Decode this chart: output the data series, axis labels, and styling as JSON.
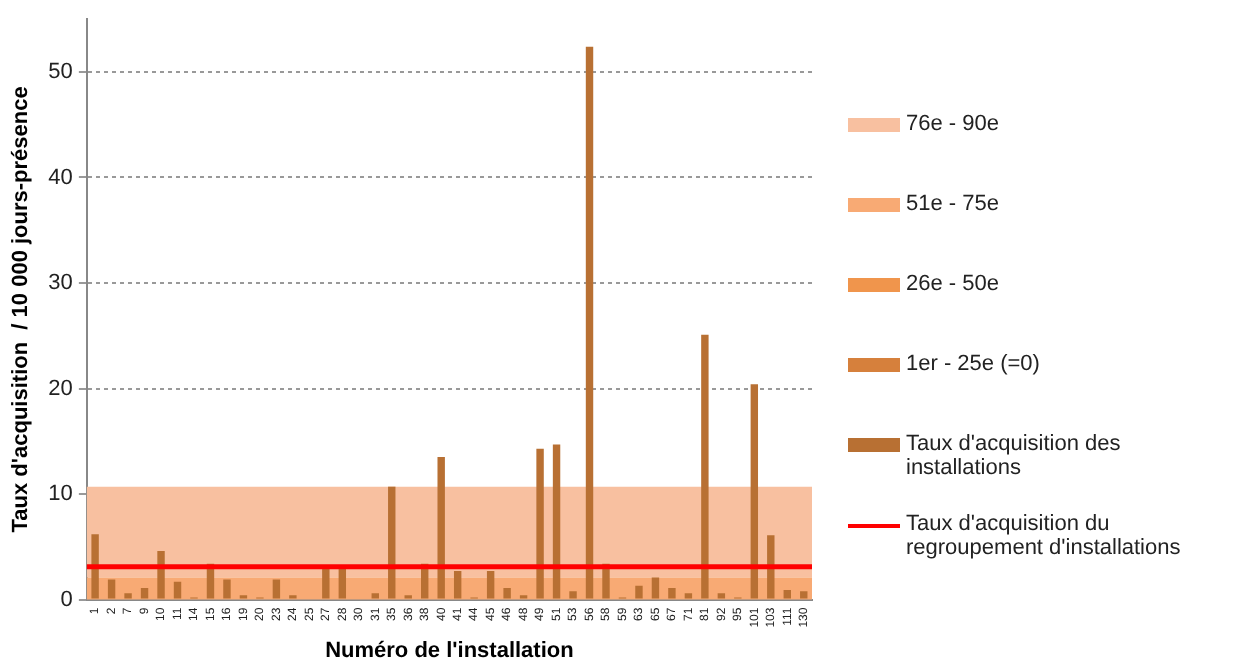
{
  "chart_data": {
    "type": "bar",
    "xlabel": "Numéro de l'installation",
    "ylabel": "Taux d'acquisition  / 10 000 jours-présence",
    "categories": [
      "1",
      "2",
      "7",
      "9",
      "10",
      "11",
      "14",
      "15",
      "16",
      "19",
      "20",
      "23",
      "24",
      "25",
      "27",
      "28",
      "30",
      "31",
      "35",
      "36",
      "38",
      "40",
      "41",
      "44",
      "45",
      "46",
      "48",
      "49",
      "51",
      "53",
      "56",
      "58",
      "59",
      "63",
      "65",
      "67",
      "71",
      "81",
      "92",
      "95",
      "101",
      "103",
      "111",
      "130"
    ],
    "series": [
      {
        "name": "Taux d'acquisition des installations",
        "color": "#b87033",
        "values": [
          6.2,
          1.9,
          0.6,
          1.1,
          4.6,
          1.7,
          0.2,
          3.4,
          1.9,
          0.4,
          0.2,
          1.9,
          0.4,
          0,
          3.0,
          3.0,
          0,
          0.6,
          10.7,
          0.4,
          3.4,
          13.5,
          2.7,
          0.2,
          2.7,
          1.1,
          0.4,
          14.3,
          14.7,
          0.8,
          52.4,
          3.4,
          0.2,
          1.3,
          2.1,
          1.1,
          0.6,
          25.1,
          0.6,
          0.2,
          20.4,
          6.1,
          0.9,
          0.8
        ]
      }
    ],
    "bands": [
      {
        "axis": "y",
        "from": 2.1,
        "to": 10.7,
        "label": "76e - 90e",
        "color": "#f8c0a0"
      },
      {
        "axis": "y",
        "from": 0,
        "to": 2.1,
        "label": "51e - 75e",
        "color": "#f8aa74"
      }
    ],
    "annotations": [
      "26e - 50e",
      "1er - 25e (=0)"
    ],
    "ref_lines": [
      {
        "axis": "y",
        "value": 3.1,
        "label": "Taux d'acquisition du regroupement d'installations",
        "color": "#ff0000"
      }
    ],
    "ylim": [
      0,
      55
    ],
    "yticks": [
      0,
      10,
      20,
      30,
      40,
      50
    ],
    "grid": "y",
    "legend": "right"
  }
}
